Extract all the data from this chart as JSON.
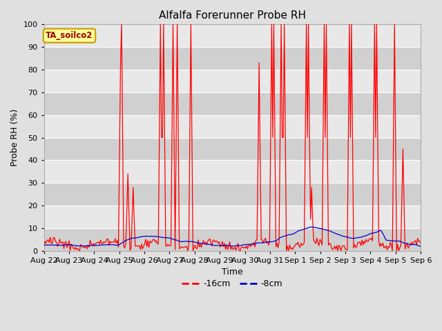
{
  "title": "Alfalfa Forerunner Probe RH",
  "xlabel": "Time",
  "ylabel": "Probe RH (%)",
  "ylim": [
    0,
    100
  ],
  "fig_bg_color": "#e0e0e0",
  "plot_bg_color": "#e8e8e8",
  "band_dark": "#d0d0d0",
  "band_light": "#e8e8e8",
  "grid_color": "#ffffff",
  "annotation_text": "TA_soilco2",
  "annotation_bg": "#ffff99",
  "annotation_border": "#cc9900",
  "annotation_text_color": "#990000",
  "legend_red_label": "-16cm",
  "legend_blue_label": "-8cm",
  "red_color": "#ff0000",
  "blue_color": "#0000cc",
  "tick_labels": [
    "Aug 22",
    "Aug 23",
    "Aug 24",
    "Aug 25",
    "Aug 26",
    "Aug 27",
    "Aug 28",
    "Aug 29",
    "Aug 30",
    "Aug 31",
    "Sep 1",
    "Sep 2",
    "Sep 3",
    "Sep 4",
    "Sep 5",
    "Sep 6"
  ]
}
